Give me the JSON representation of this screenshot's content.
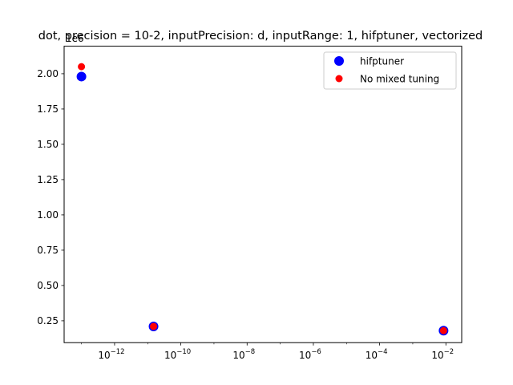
{
  "chart_data": {
    "type": "scatter",
    "title": "dot, precision = 10-2, inputPrecision: d, inputRange: 1, hifptuner, vectorized",
    "xlabel": "",
    "ylabel": "",
    "x_scale": "log",
    "xlim": [
      3e-14,
      0.03
    ],
    "ylim": [
      0.095,
      2.195
    ],
    "y_offset_label": "1e6",
    "x_ticks": [
      {
        "value": 1e-12,
        "base": "10",
        "exp": "−12"
      },
      {
        "value": 1e-10,
        "base": "10",
        "exp": "−10"
      },
      {
        "value": 1e-08,
        "base": "10",
        "exp": "−8"
      },
      {
        "value": 1e-06,
        "base": "10",
        "exp": "−6"
      },
      {
        "value": 0.0001,
        "base": "10",
        "exp": "−4"
      },
      {
        "value": 0.01,
        "base": "10",
        "exp": "−2"
      }
    ],
    "y_ticks": [
      {
        "value": 0.25,
        "label": "0.25"
      },
      {
        "value": 0.5,
        "label": "0.50"
      },
      {
        "value": 0.75,
        "label": "0.75"
      },
      {
        "value": 1.0,
        "label": "1.00"
      },
      {
        "value": 1.25,
        "label": "1.25"
      },
      {
        "value": 1.5,
        "label": "1.50"
      },
      {
        "value": 1.75,
        "label": "1.75"
      },
      {
        "value": 2.0,
        "label": "2.00"
      }
    ],
    "grid": false,
    "legend_position": "top-right",
    "series": [
      {
        "name": "hifptuner",
        "color": "#0000ff",
        "marker": "large-circle",
        "points": [
          [
            1e-13,
            1.98
          ],
          [
            1.5e-11,
            0.21
          ],
          [
            0.0085,
            0.18
          ]
        ]
      },
      {
        "name": "No mixed tuning",
        "color": "#ff0000",
        "marker": "circle",
        "points": [
          [
            1e-13,
            2.05
          ],
          [
            1.5e-11,
            0.21
          ],
          [
            0.0085,
            0.18
          ]
        ]
      }
    ]
  }
}
